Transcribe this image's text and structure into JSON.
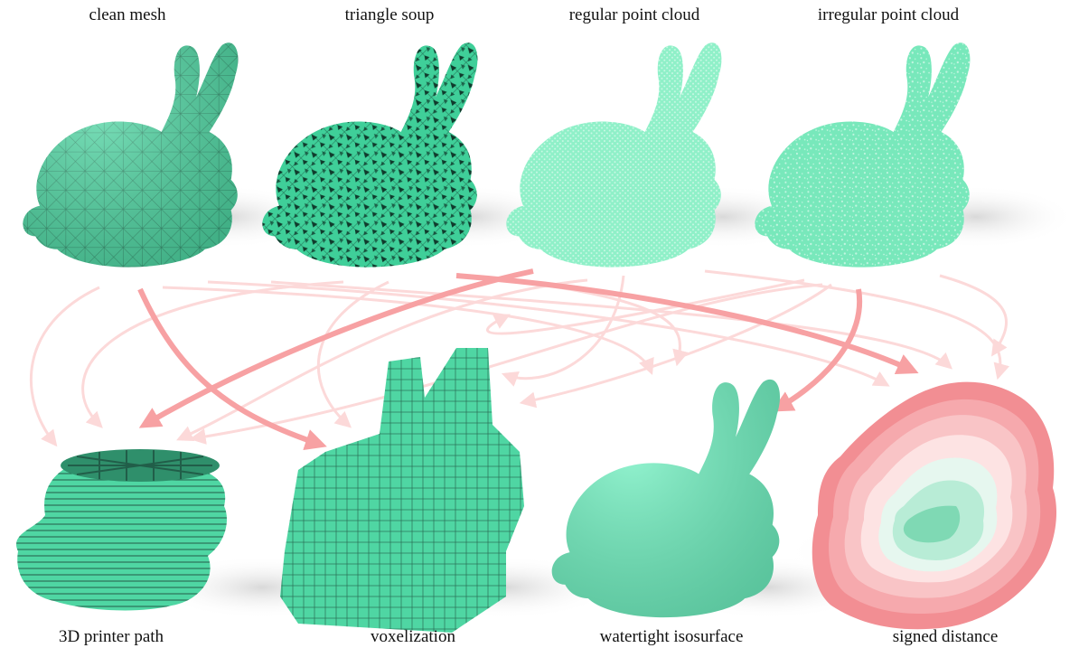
{
  "figure": {
    "top_labels": [
      "clean mesh",
      "triangle soup",
      "regular point cloud",
      "irregular point cloud"
    ],
    "bottom_labels": [
      "3D printer path",
      "voxelization",
      "watertight isosurface",
      "signed distance"
    ]
  },
  "colors": {
    "mesh_green": "#4fd6a3",
    "mesh_green_dark": "#2e9e74",
    "light_green": "#6ff0c0",
    "arrow_faint": "#fcd9d9",
    "arrow_strong": "#f7a1a3",
    "sdf_red": "#f28e93"
  }
}
